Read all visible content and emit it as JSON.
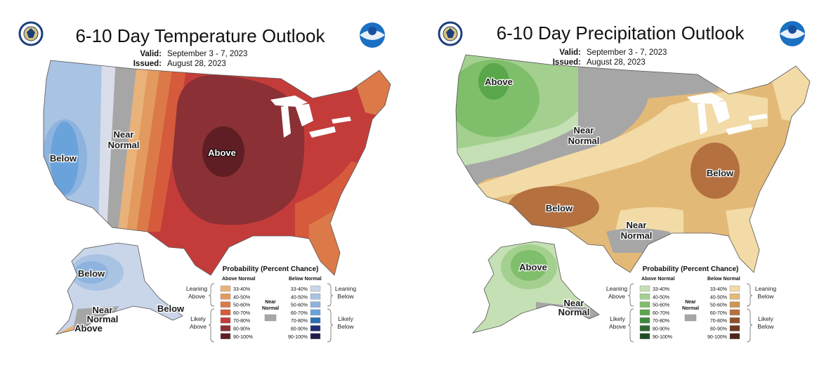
{
  "temperature": {
    "title": "6-10 Day Temperature Outlook",
    "valid_label": "Valid:",
    "valid_value": "September 3 - 7, 2023",
    "issued_label": "Issued:",
    "issued_value": "August 28, 2023",
    "labels": {
      "below": "Below",
      "near": "Near",
      "normal": "Normal",
      "above": "Above",
      "ak_below": "Below",
      "ak_near": "Near",
      "ak_normal": "Normal",
      "ak_above": "Above",
      "ak_below_right": "Below"
    },
    "legend": {
      "title": "Probability (Percent Chance)",
      "left_head": "Above Normal",
      "right_head": "Below Normal",
      "near_line1": "Near",
      "near_line2": "Normal",
      "leaning_left_1": "Leaning",
      "leaning_left_2": "Above",
      "likely_left_1": "Likely",
      "likely_left_2": "Above",
      "leaning_right_1": "Leaning",
      "leaning_right_2": "Below",
      "likely_right_1": "Likely",
      "likely_right_2": "Below",
      "ranges": [
        "33-40%",
        "40-50%",
        "50-60%",
        "60-70%",
        "70-80%",
        "80-90%",
        "90-100%"
      ],
      "left_colors": [
        "#e9b27a",
        "#e39a5f",
        "#db7a48",
        "#d65a3c",
        "#c43c3a",
        "#8b3035",
        "#5e1e24"
      ],
      "right_colors": [
        "#c9d6ea",
        "#a9c3e3",
        "#8db3de",
        "#6aa3dc",
        "#2d6fb4",
        "#1f2f75",
        "#231c4d"
      ],
      "near_color": "#a6a6a6"
    }
  },
  "precipitation": {
    "title": "6-10 Day Precipitation Outlook",
    "valid_label": "Valid:",
    "valid_value": "September 3 - 7, 2023",
    "issued_label": "Issued:",
    "issued_value": "August 28, 2023",
    "labels": {
      "above": "Above",
      "near": "Near",
      "normal": "Normal",
      "below_east": "Below",
      "below_sw": "Below",
      "near_gulf": "Near",
      "normal_gulf": "Normal",
      "ak_above": "Above",
      "ak_near": "Near",
      "ak_normal": "Normal"
    },
    "legend": {
      "title": "Probability (Percent Chance)",
      "left_head": "Above Normal",
      "right_head": "Below Normal",
      "near_line1": "Near",
      "near_line2": "Normal",
      "leaning_left_1": "Leaning",
      "leaning_left_2": "Above",
      "likely_left_1": "Likely",
      "likely_left_2": "Above",
      "leaning_right_1": "Leaning",
      "leaning_right_2": "Below",
      "likely_right_1": "Likely",
      "likely_right_2": "Below",
      "ranges": [
        "33-40%",
        "40-50%",
        "50-60%",
        "60-70%",
        "70-80%",
        "80-90%",
        "90-100%"
      ],
      "left_colors": [
        "#c5e0b4",
        "#a3d08f",
        "#7fbe6a",
        "#5aa64b",
        "#3f8a3d",
        "#2e6a30",
        "#1e4d22"
      ],
      "right_colors": [
        "#f2dba6",
        "#e3b978",
        "#cf9452",
        "#b57040",
        "#8f5230",
        "#6e3a1f",
        "#4a2717"
      ],
      "near_color": "#a6a6a6"
    }
  }
}
